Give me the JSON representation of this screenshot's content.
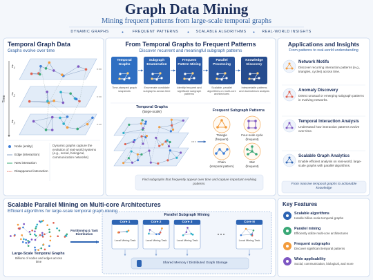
{
  "header": {
    "title": "Graph Data Mining",
    "subtitle": "Mining frequent patterns from large-scale temporal graphs",
    "tags": [
      "DYNAMIC GRAPHS",
      "FREQUENT PATTERNS",
      "SCALABLE ALGORITHMS",
      "REAL-WORLD INSIGHTS"
    ]
  },
  "temporal_panel": {
    "title": "Temporal Graph Data",
    "subtitle": "Graphs evolve over time",
    "time_labels": [
      "t₁",
      "t₂",
      "t₃"
    ],
    "axis_label": "Time",
    "legend": [
      "Node (entity)",
      "Edge (interaction)",
      "New interaction",
      "Disappeared interaction"
    ],
    "note": "Dynamic graphs capture the evolution of real-world systems (e.g., social, biological, communication networks)"
  },
  "pipeline_panel": {
    "title": "From Temporal Graphs to Frequent Patterns",
    "subtitle": "Discover recurrent and meaningful subgraph patterns",
    "steps": [
      {
        "title": "Temporal Graphs",
        "description": "Time-stamped graph snapshots"
      },
      {
        "title": "Subgraph Enumeration",
        "description": "Enumerate candidate subgraphs across time"
      },
      {
        "title": "Frequent Pattern Mining",
        "description": "Identify frequent and significant subgraph patterns"
      },
      {
        "title": "Parallel Processing",
        "description": "Scalable, parallel algorithms on multi-core architectures"
      },
      {
        "title": "Knowledge Discovery",
        "description": "Interpretable patterns and downstream analysis"
      }
    ],
    "graph_label": "Temporal Graphs",
    "graph_sublabel": "(large-scale)",
    "patterns_title": "Frequent Subgraph Patterns",
    "patterns": [
      {
        "name": "Triangle",
        "note": "(frequent)"
      },
      {
        "name": "Four-node cycle",
        "note": "(frequent)"
      },
      {
        "name": "Chain",
        "note": "(temporal pattern)"
      },
      {
        "name": "Star",
        "note": "(frequent)"
      }
    ],
    "note": "Find subgraphs that frequently appear over time and capture important evolving patterns."
  },
  "applications_panel": {
    "title": "Applications and Insights",
    "subtitle": "From patterns to real-world understanding",
    "items": [
      {
        "title": "Network Motifs",
        "description": "Discover recurring interaction patterns (e.g., triangles, cycles) across time."
      },
      {
        "title": "Anomaly Discovery",
        "description": "Detect unusual or emerging subgraph patterns in evolving networks."
      },
      {
        "title": "Temporal Interaction Analysis",
        "description": "Understand how interaction patterns evolve over time."
      },
      {
        "title": "Scalable Graph Analytics",
        "description": "Enable efficient analysis on real-world, large-scale graphs with parallel algorithms."
      }
    ],
    "footer": "From massive temporal graphs to actionable knowledge"
  },
  "parallel_panel": {
    "title": "Scalable Parallel Mining on Multi-core Architectures",
    "subtitle": "Efficient algorithms for large-scale temporal graph mining",
    "source_title": "Large-Scale Temporal Graphs",
    "source_description": "Billions of nodes and edges across time",
    "distribution_label": "Partitioning & Task Distribution",
    "mining_title": "Parallel Subgraph Mining",
    "cores": [
      {
        "name": "Core 1",
        "task": "Local Mining Task"
      },
      {
        "name": "Core 2",
        "task": "Local Mining Task"
      },
      {
        "name": "Core 3",
        "task": "Local Mining Task"
      },
      {
        "name": "Core N",
        "task": "Local Mining Task"
      }
    ],
    "storage": "Shared Memory / Distributed Graph Storage"
  },
  "features_panel": {
    "title": "Key Features",
    "items": [
      {
        "title": "Scalable algorithms",
        "description": "Handle billion-scale temporal graphs"
      },
      {
        "title": "Parallel mining",
        "description": "Efficiently utilize multi-core architectures"
      },
      {
        "title": "Frequent subgraphs",
        "description": "Discover significant temporal patterns"
      },
      {
        "title": "Wide applicability",
        "description": "Social, communication, biological, and more"
      }
    ]
  }
}
